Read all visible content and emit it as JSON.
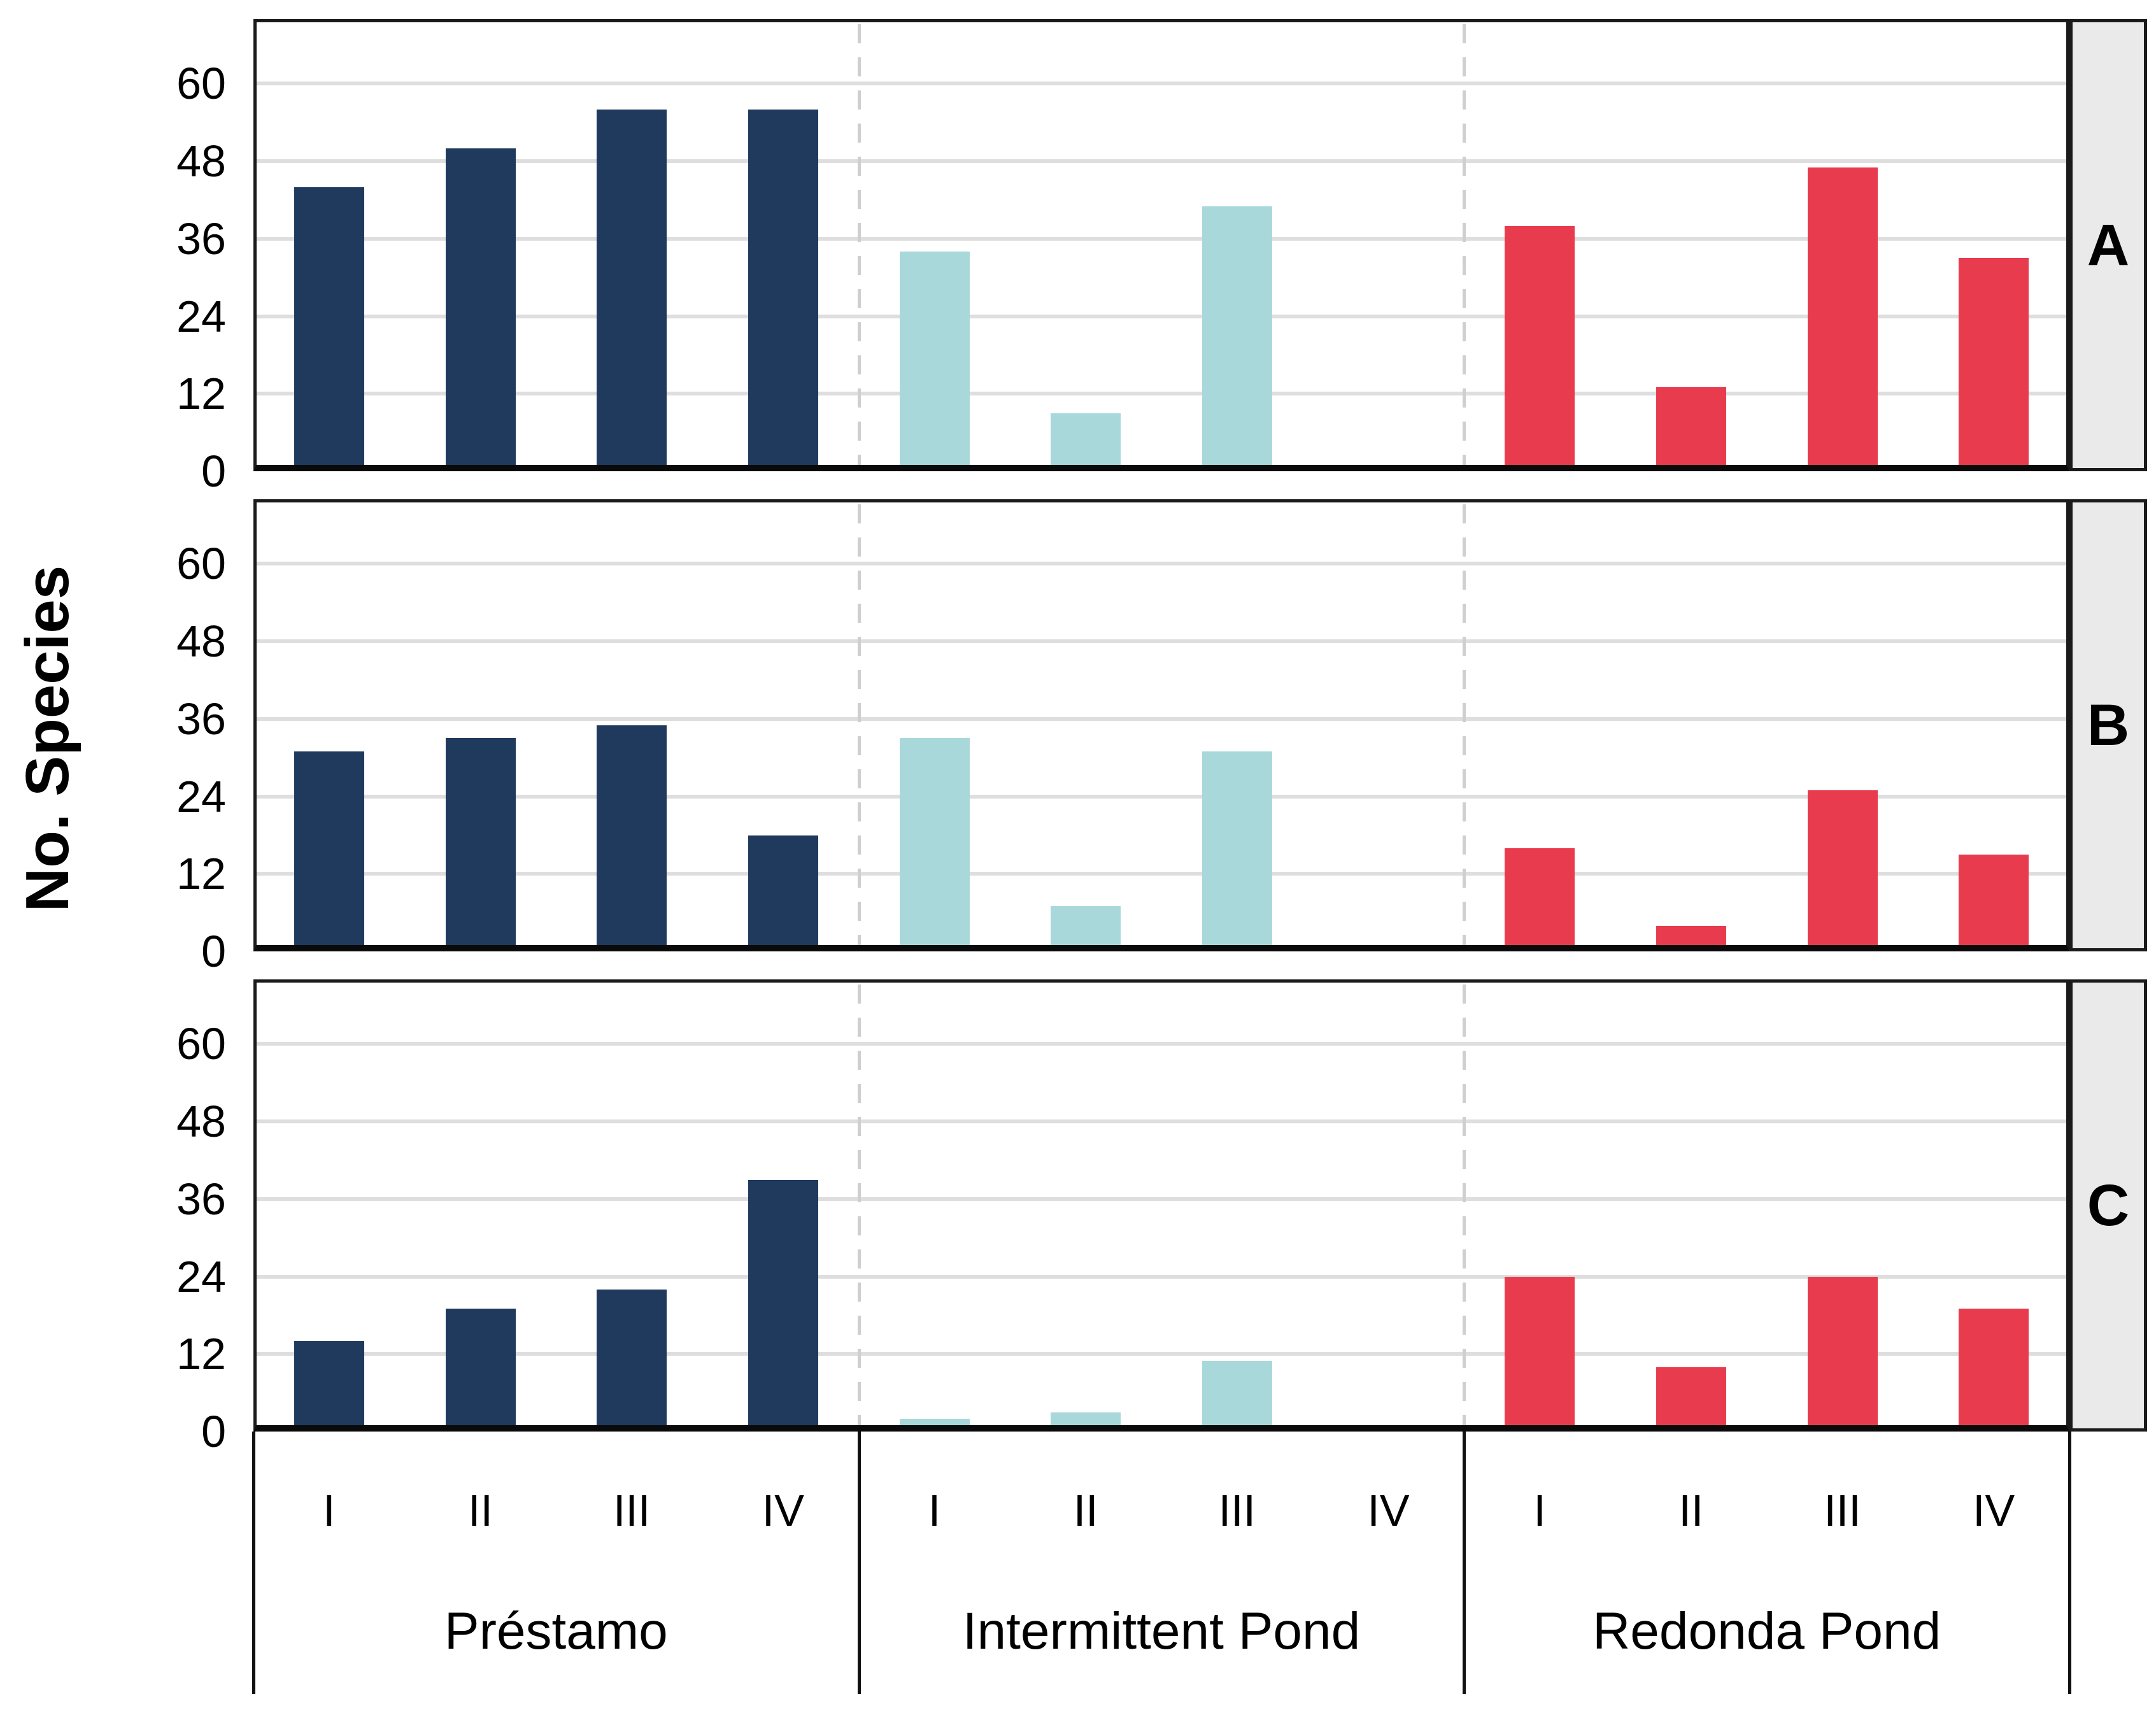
{
  "figure": {
    "y_axis_title": "No. Species"
  },
  "chart_data": [
    {
      "type": "bar",
      "panel": "A",
      "categories": [
        "I",
        "II",
        "III",
        "IV"
      ],
      "series": [
        {
          "name": "Préstamo",
          "color": "#1F3A5C",
          "values": [
            43,
            49,
            55,
            55
          ]
        },
        {
          "name": "Intermittent Pond",
          "color": "#A9D8DA",
          "values": [
            33,
            8,
            40,
            0
          ]
        },
        {
          "name": "Redonda Pond",
          "color": "#E83C4E",
          "values": [
            37,
            12,
            46,
            32
          ]
        }
      ],
      "ylabel": "No. Species",
      "ylim": [
        0,
        70
      ],
      "yticks": [
        0,
        12,
        24,
        36,
        48,
        60
      ],
      "grid": true,
      "legend": false
    },
    {
      "type": "bar",
      "panel": "B",
      "categories": [
        "I",
        "II",
        "III",
        "IV"
      ],
      "series": [
        {
          "name": "Préstamo",
          "color": "#1F3A5C",
          "values": [
            30,
            32,
            34,
            17
          ]
        },
        {
          "name": "Intermittent Pond",
          "color": "#A9D8DA",
          "values": [
            32,
            6,
            30,
            0
          ]
        },
        {
          "name": "Redonda Pond",
          "color": "#E83C4E",
          "values": [
            15,
            3,
            24,
            14
          ]
        }
      ],
      "ylabel": "No. Species",
      "ylim": [
        0,
        70
      ],
      "yticks": [
        0,
        12,
        24,
        36,
        48,
        60
      ],
      "grid": true,
      "legend": false
    },
    {
      "type": "bar",
      "panel": "C",
      "categories": [
        "I",
        "II",
        "III",
        "IV"
      ],
      "series": [
        {
          "name": "Préstamo",
          "color": "#1F3A5C",
          "values": [
            13,
            18,
            21,
            38
          ]
        },
        {
          "name": "Intermittent Pond",
          "color": "#A9D8DA",
          "values": [
            1,
            2,
            10,
            0
          ]
        },
        {
          "name": "Redonda Pond",
          "color": "#E83C4E",
          "values": [
            23,
            9,
            23,
            18
          ]
        }
      ],
      "ylabel": "No. Species",
      "ylim": [
        0,
        70
      ],
      "yticks": [
        0,
        12,
        24,
        36,
        48,
        60
      ],
      "grid": true,
      "legend": false
    }
  ]
}
